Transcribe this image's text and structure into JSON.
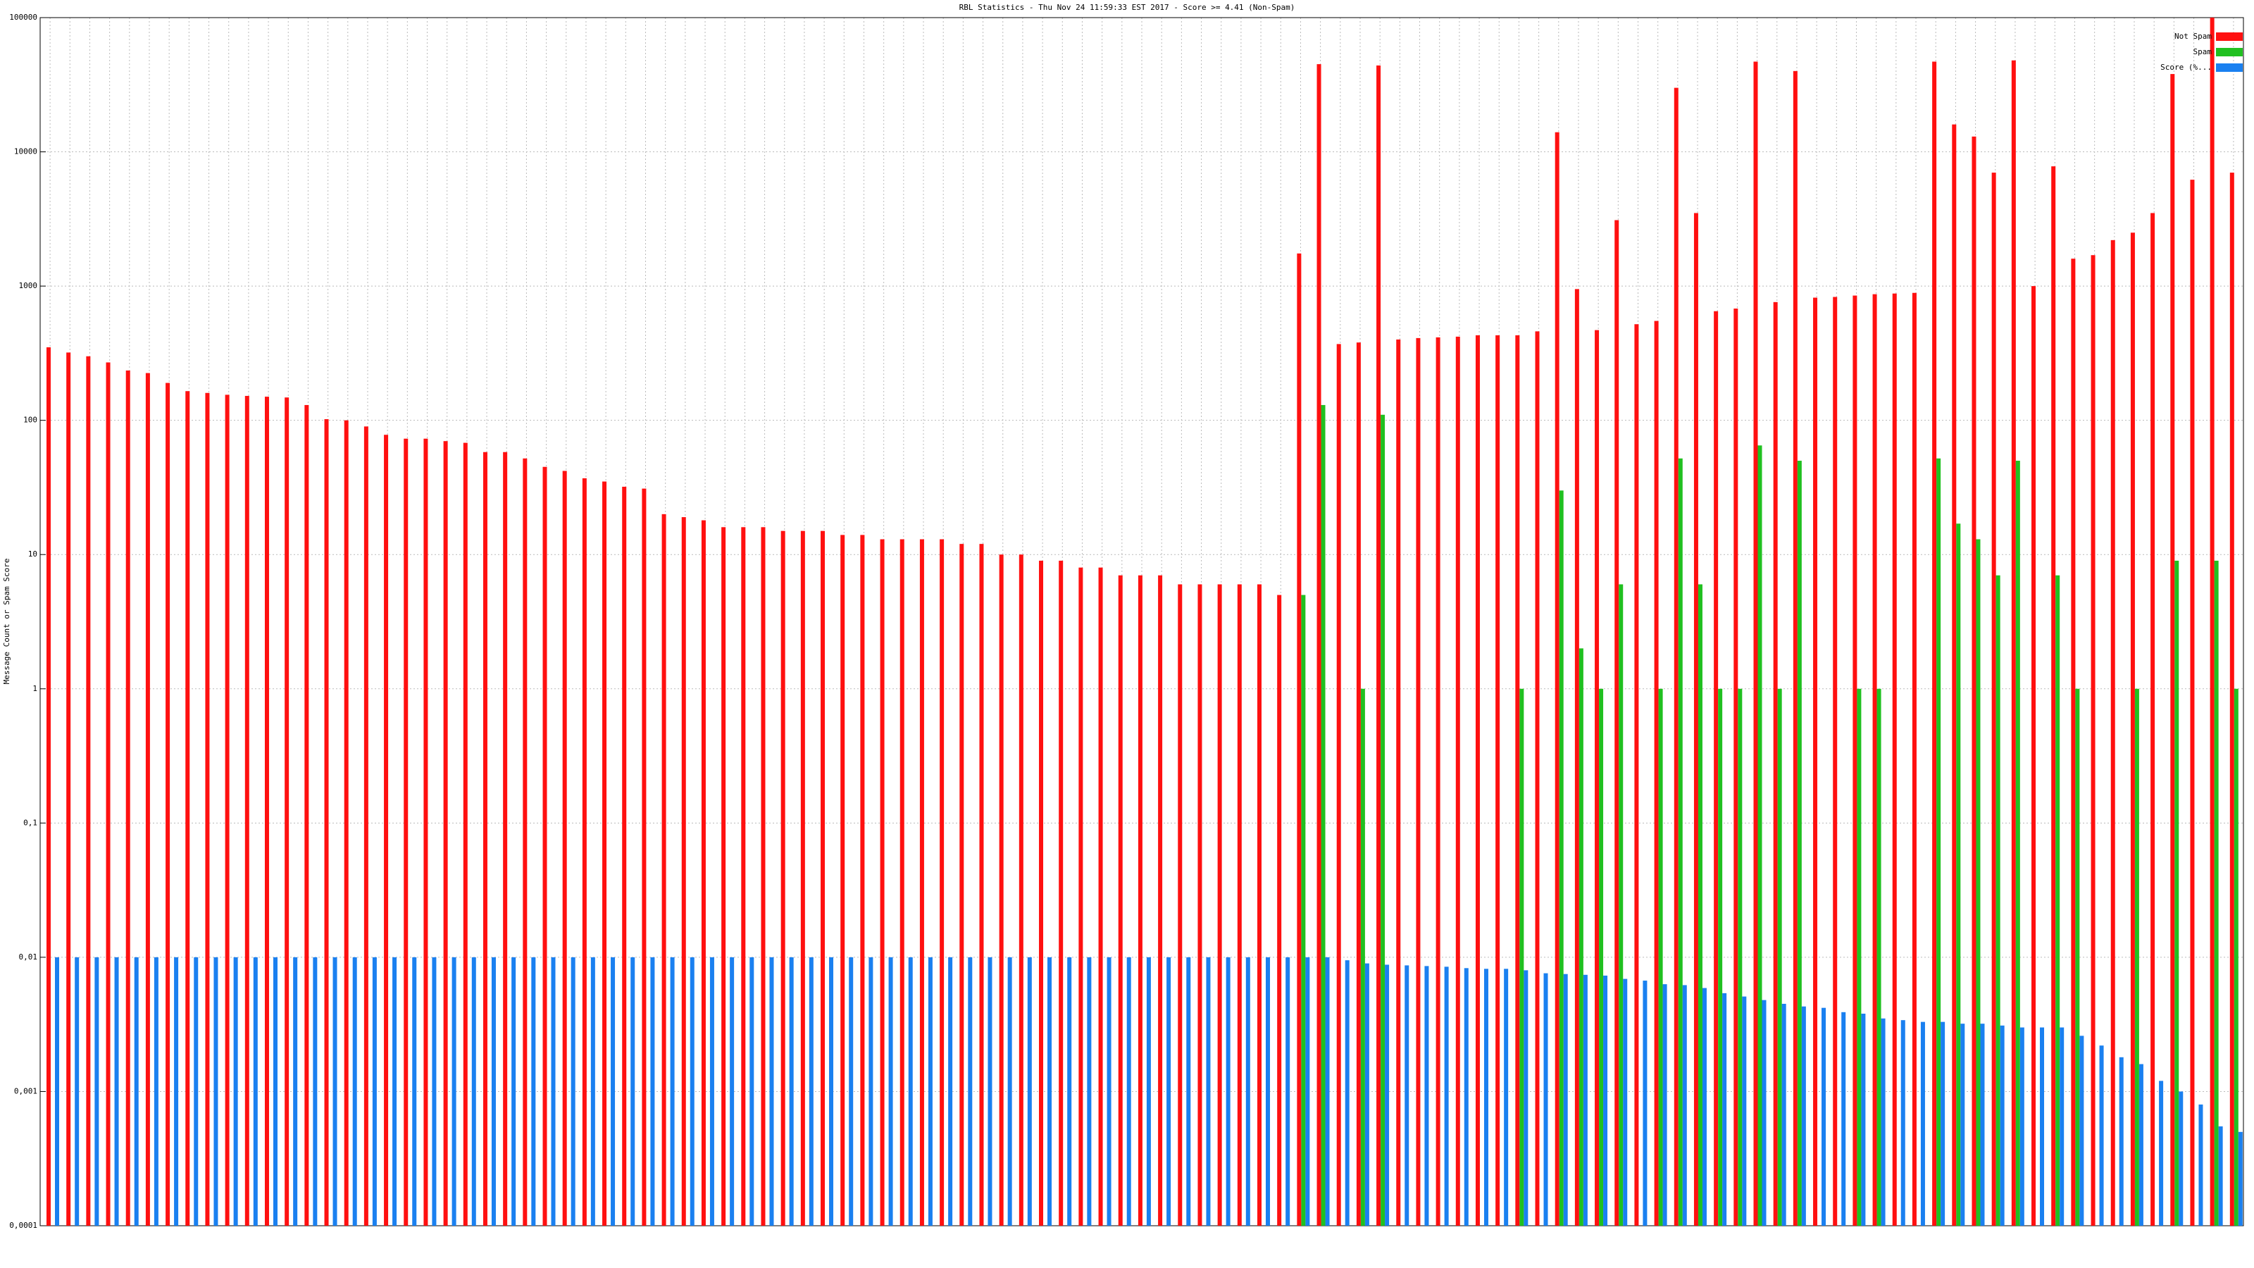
{
  "chart_data": {
    "type": "bar",
    "title": "RBL Statistics - Thu Nov 24 11:59:33 EST 2017 - Score >= 4.41 (Non-Spam)",
    "y_label": "Message Count or Spam Score",
    "log_y": true,
    "grid": true,
    "legend": "top-right",
    "categories": [
      null,
      null,
      null,
      null,
      null,
      null,
      null,
      null,
      null,
      null,
      null,
      null,
      null,
      null,
      null,
      null,
      null,
      null,
      null,
      null,
      null,
      null,
      null,
      null,
      null,
      null,
      null,
      null,
      null,
      null,
      null,
      null,
      null,
      null,
      null,
      null,
      null,
      null,
      null,
      null,
      null,
      null,
      null,
      null,
      null,
      null,
      null,
      null,
      null,
      null,
      null,
      null,
      null,
      null,
      null,
      null,
      null,
      null,
      null,
      null,
      null,
      null,
      null,
      null,
      null,
      null,
      null,
      null,
      null,
      null,
      null,
      null,
      null,
      null,
      null,
      null,
      null,
      null,
      null,
      null,
      null,
      null,
      null,
      null,
      null,
      null,
      null,
      null,
      null,
      null,
      null,
      null,
      null,
      null,
      null,
      null,
      null,
      null,
      null,
      null,
      null,
      null,
      null,
      null,
      null,
      null,
      null,
      null,
      null,
      null,
      null
    ],
    "ylim": [
      0.0001,
      100000
    ],
    "yticks": [
      {
        "value": 0.0001,
        "label": "0,0001"
      },
      {
        "value": 0.001,
        "label": "0,001"
      },
      {
        "value": 0.01,
        "label": "0,01"
      },
      {
        "value": 0.1,
        "label": "0,1"
      },
      1,
      10,
      100,
      1000,
      10000,
      100000
    ],
    "series": [
      {
        "name": "Not Spam",
        "color": "#ff1010",
        "values": [
          350,
          320,
          300,
          270,
          235,
          225,
          190,
          165,
          160,
          155,
          152,
          150,
          148,
          130,
          102,
          100,
          90,
          78,
          73,
          73,
          70,
          68,
          58,
          58,
          52,
          45,
          42,
          37,
          35,
          32,
          31,
          20,
          19,
          18,
          16,
          16,
          16,
          15,
          15,
          15,
          14,
          14,
          13,
          13,
          13,
          13,
          12,
          12,
          10,
          10,
          9,
          9,
          8,
          8,
          7,
          7,
          7,
          6,
          6,
          6,
          6,
          6,
          5,
          1750,
          45000,
          370,
          380,
          44000,
          400,
          410,
          415,
          420,
          430,
          430,
          430,
          460,
          14000,
          950,
          470,
          3100,
          520,
          550,
          30000,
          3500,
          650,
          680,
          47000,
          760,
          40000,
          820,
          830,
          850,
          870,
          880,
          890,
          47000,
          16000,
          13000,
          7000,
          48000,
          1000,
          7800,
          1600,
          1700,
          2200,
          2500,
          3500,
          38000,
          6200,
          100000,
          7000
        ]
      },
      {
        "name": "Spam",
        "color": "#20c020",
        "values": [
          null,
          null,
          null,
          null,
          null,
          null,
          null,
          null,
          null,
          null,
          null,
          null,
          null,
          null,
          null,
          null,
          null,
          null,
          null,
          null,
          null,
          null,
          null,
          null,
          null,
          null,
          null,
          null,
          null,
          null,
          null,
          null,
          null,
          null,
          null,
          null,
          null,
          null,
          null,
          null,
          null,
          null,
          null,
          null,
          null,
          null,
          null,
          null,
          null,
          null,
          null,
          null,
          null,
          null,
          null,
          null,
          null,
          null,
          null,
          null,
          null,
          null,
          null,
          5,
          130,
          null,
          1,
          110,
          null,
          null,
          null,
          null,
          null,
          null,
          1,
          null,
          30,
          2,
          1,
          6,
          null,
          1,
          52,
          6,
          1,
          1,
          65,
          1,
          50,
          null,
          null,
          1,
          1,
          null,
          null,
          52,
          17,
          13,
          7,
          50,
          null,
          7,
          1,
          null,
          null,
          1,
          null,
          9,
          null,
          9,
          1
        ]
      },
      {
        "name": "Score (%...",
        "color": "#1a80f0",
        "values": [
          0.01,
          0.01,
          0.01,
          0.01,
          0.01,
          0.01,
          0.01,
          0.01,
          0.01,
          0.01,
          0.01,
          0.01,
          0.01,
          0.01,
          0.01,
          0.01,
          0.01,
          0.01,
          0.01,
          0.01,
          0.01,
          0.01,
          0.01,
          0.01,
          0.01,
          0.01,
          0.01,
          0.01,
          0.01,
          0.01,
          0.01,
          0.01,
          0.01,
          0.01,
          0.01,
          0.01,
          0.01,
          0.01,
          0.01,
          0.01,
          0.01,
          0.01,
          0.01,
          0.01,
          0.01,
          0.01,
          0.01,
          0.01,
          0.01,
          0.01,
          0.01,
          0.01,
          0.01,
          0.01,
          0.01,
          0.01,
          0.01,
          0.01,
          0.01,
          0.01,
          0.01,
          0.01,
          0.01,
          0.01,
          0.01,
          0.0095,
          0.009,
          0.0088,
          0.0087,
          0.0086,
          0.0085,
          0.0083,
          0.0082,
          0.0082,
          0.008,
          0.0076,
          0.0075,
          0.0074,
          0.0073,
          0.0069,
          0.0067,
          0.0063,
          0.0062,
          0.0059,
          0.0054,
          0.0051,
          0.0048,
          0.0045,
          0.0043,
          0.0042,
          0.0039,
          0.0038,
          0.0035,
          0.0034,
          0.0033,
          0.0033,
          0.0032,
          0.0032,
          0.0031,
          0.003,
          0.003,
          0.003,
          0.0026,
          0.0022,
          0.0018,
          0.0016,
          0.0012,
          0.001,
          0.0008,
          0.00055,
          0.0005
        ]
      }
    ]
  }
}
